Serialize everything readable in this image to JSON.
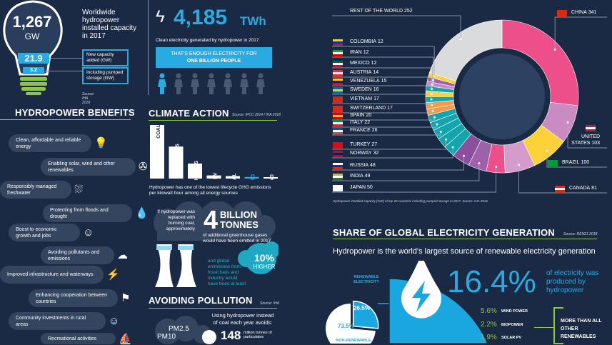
{
  "capacity": {
    "value": "1,267",
    "unit": "GW",
    "description": "Worldwide hydropower installed capacity in 2017",
    "new_capacity": "21.9",
    "new_capacity_label": "New capacity added (GW)",
    "pumped": "3.2",
    "pumped_label": "Including pumped storage (GW)",
    "source": "Source: IHA 2018"
  },
  "generation": {
    "value": "4,185",
    "unit": "TWh",
    "caption": "Clean electricity generated by hydropower in 2017",
    "banner_line1": "THAT'S ENOUGH ELECTRICITY FOR",
    "banner_line2": "ONE BILLION PEOPLE",
    "people_highlighted": 1,
    "people_total": 7
  },
  "benefits": {
    "title": "HYDROPOWER BENEFITS",
    "items": [
      {
        "label": "Clean, affordable and reliable energy",
        "icon": "lightbulb-leaf-icon"
      },
      {
        "label": "Enabling solar, wind and other renewables",
        "icon": "wind-solar-icon"
      },
      {
        "label": "Responsibly managed freshwater",
        "icon": "dam-icon"
      },
      {
        "label": "Protecting from floods and drought",
        "icon": "wheat-drop-icon"
      },
      {
        "label": "Boost to economic growth and jobs",
        "icon": "worker-icon"
      },
      {
        "label": "Avoiding pollutants and emissions",
        "icon": "cloud-icon"
      },
      {
        "label": "Improved infrastructure and waterways",
        "icon": "pylon-icon"
      },
      {
        "label": "Enhancing cooperation between countries",
        "icon": "flags-icon"
      },
      {
        "label": "Community investments in rural areas",
        "icon": "graduate-icon"
      },
      {
        "label": "Recreational activities",
        "icon": "boat-icon"
      }
    ]
  },
  "climate": {
    "title": "CLIMATE ACTION",
    "source": "Source: IPCC 2014 / IHA 2018",
    "caption": "Hydropower has one of the lowest lifecycle GHG emissions per kilowatt hour among all energy sources",
    "coal_text": "If hydropower was replaced with burning coal, approximately",
    "big_number": "4",
    "big_unit1": "BILLION",
    "big_unit2": "TONNES",
    "emitted_text": "of additional greenhouse gases would have been emitted in 2017",
    "global_text": "and global emmisions from fossil fuels and industry would have been at least",
    "higher_value": "10%",
    "higher_label": "HIGHER"
  },
  "pollution": {
    "title": "AVOIDING POLLUTION",
    "source": "Source: IHA",
    "intro": "Using hydropower instead of coal each year avoids:",
    "value": "148",
    "value_label": "million tonnes of particulates",
    "pm1": "PM2.5",
    "pm2": "PM10"
  },
  "share": {
    "title": "SHARE OF GLOBAL ELECTRICITY GENERATION",
    "source": "Source: REN21 2018",
    "subtitle": "Hydropower is the world's largest source of renewable electricity generation",
    "renewable_label": "RENEWABLE ELECTRICITY",
    "renewable_pct": "26.5%",
    "nonrenewable_pct": "73.5%",
    "hydro_pct": "16.4%",
    "hydro_text": "of electricity was produced by hydropower",
    "others": [
      {
        "pct": "5.6%",
        "label": "WIND POWER"
      },
      {
        "pct": "2.2%",
        "label": "BIOPOWER"
      },
      {
        "pct": "1.9%",
        "label": "SOLAR PV"
      }
    ],
    "more_than": "MORE THAN ALL OTHER RENEWABLES",
    "colors": {
      "hydro": "#1aa7e0",
      "other": "#8dc63f"
    }
  },
  "chart_data": [
    {
      "type": "bar",
      "categories": [
        "COAL",
        "GAS",
        "BIOMASS",
        "SOLAR PV",
        "GEOTHERMAL",
        "HYDRO",
        "WIND"
      ],
      "values": [
        820,
        490,
        230,
        48,
        38,
        24,
        11
      ],
      "highlight": "HYDRO",
      "colors": {
        "bar": "#ffffff",
        "highlight": "#29abe2"
      }
    },
    {
      "type": "pie",
      "subtype": "donut",
      "caption": "Hydropower installed capacity (GW) of top 20 countries including pumped storage in 2017. Source: IHA 2018",
      "slices": [
        {
          "label": "CHINA",
          "value": 341,
          "color": "#ec4f8a",
          "flag": [
            "#de2910"
          ]
        },
        {
          "label": "UNITED STATES",
          "value": 103,
          "color": "#c98bc1",
          "flag": [
            "#b22234",
            "#fff",
            "#b22234"
          ]
        },
        {
          "label": "BRAZIL",
          "value": 100,
          "color": "#fdd13a",
          "flag": [
            "#009c3b"
          ]
        },
        {
          "label": "CANADA",
          "value": 81,
          "color": "#d59ccb",
          "flag": [
            "#d52b1e",
            "#fff",
            "#d52b1e"
          ]
        },
        {
          "label": "JAPAN",
          "value": 50,
          "color": "#ec4f8a",
          "flag": [
            "#fff"
          ]
        },
        {
          "label": "INDIA",
          "value": 49,
          "color": "#9d62a9",
          "flag": [
            "#ff9933",
            "#fff",
            "#138808"
          ]
        },
        {
          "label": "RUSSIA",
          "value": 48,
          "color": "#8b4f9d",
          "flag": [
            "#fff",
            "#0039a6",
            "#d52b1e"
          ]
        },
        {
          "label": "NORWAY",
          "value": 32,
          "color": "#14a4ad",
          "flag": [
            "#ba0c2f",
            "#00205b",
            "#ba0c2f"
          ]
        },
        {
          "label": "TURKEY",
          "value": 27,
          "color": "#14a4ad",
          "flag": [
            "#e30a17"
          ]
        },
        {
          "label": "FRANCE",
          "value": 26,
          "color": "#14a4ad",
          "flag": [
            "#0055a4",
            "#fff",
            "#ef4135"
          ]
        },
        {
          "label": "ITALY",
          "value": 22,
          "color": "#14a4ad",
          "flag": [
            "#009246",
            "#fff",
            "#ce2b37"
          ]
        },
        {
          "label": "SPAIN",
          "value": 20,
          "color": "#14a4ad",
          "flag": [
            "#c60b1e",
            "#ffc400",
            "#c60b1e"
          ]
        },
        {
          "label": "SWITZERLAND",
          "value": 17,
          "color": "#f39a4c",
          "flag": [
            "#d52b1e"
          ]
        },
        {
          "label": "VIETNAM",
          "value": 17,
          "color": "#f39a4c",
          "flag": [
            "#da251d"
          ]
        },
        {
          "label": "SWEDEN",
          "value": 16,
          "color": "#14a4ad",
          "flag": [
            "#006aa7",
            "#fecc00",
            "#006aa7"
          ]
        },
        {
          "label": "VENEZUELA",
          "value": 15,
          "color": "#fdd13a",
          "flag": [
            "#ffcc00",
            "#00247d",
            "#cf142b"
          ]
        },
        {
          "label": "AUSTRIA",
          "value": 14,
          "color": "#14a4ad",
          "flag": [
            "#ed2939",
            "#fff",
            "#ed2939"
          ]
        },
        {
          "label": "MEXICO",
          "value": 12,
          "color": "#c98bc1",
          "flag": [
            "#006847",
            "#fff",
            "#ce1126"
          ]
        },
        {
          "label": "IRAN",
          "value": 12,
          "color": "#9d62a9",
          "flag": [
            "#239f40",
            "#fff",
            "#da0000"
          ]
        },
        {
          "label": "COLOMBIA",
          "value": 12,
          "color": "#fdd13a",
          "flag": [
            "#fcd116",
            "#003893",
            "#ce1126"
          ]
        },
        {
          "label": "REST OF THE WORLD",
          "value": 252,
          "color": "#d9dbdd",
          "flag": []
        }
      ]
    },
    {
      "type": "pie",
      "slices": [
        {
          "label": "RENEWABLE ELECTRICITY",
          "value": 26.5,
          "color": "#1aa7e0"
        },
        {
          "label": "NON-RENEWABLE",
          "value": 73.5,
          "color": "#ffffff"
        }
      ]
    }
  ]
}
